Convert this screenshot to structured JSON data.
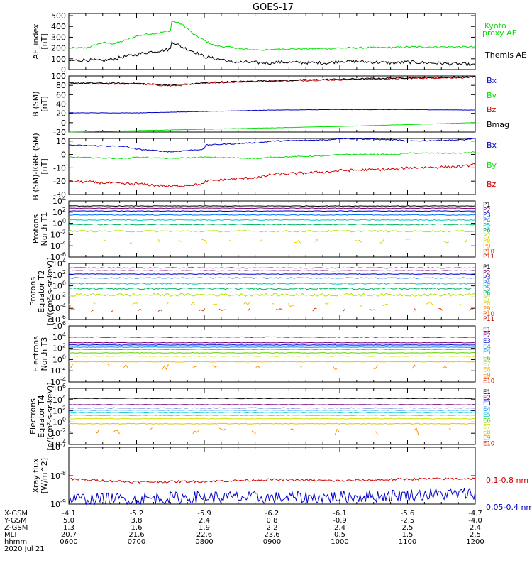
{
  "title": "GOES-17",
  "date": "2020 Jul 21",
  "colors": {
    "black": "#000000",
    "green": "#00e000",
    "blue": "#0000c8",
    "red": "#d00000",
    "P": [
      "#000000",
      "#7a007a",
      "#0000d0",
      "#0070ff",
      "#00c8c8",
      "#00b060",
      "#b8e000",
      "#e0d000",
      "#ff9000",
      "#e04000",
      "#c00000"
    ],
    "E": [
      "#000000",
      "#7a007a",
      "#0000d0",
      "#0090ff",
      "#00c8c8",
      "#60d000",
      "#d0e000",
      "#f0c000",
      "#ff9000",
      "#d02000",
      "#c00000"
    ]
  },
  "xaxis": {
    "range": [
      600,
      1200
    ],
    "tick_positions": [
      600,
      700,
      800,
      900,
      1000,
      1100,
      1200
    ],
    "rows": [
      {
        "label": "X-GSM",
        "values": [
          "-4.1",
          "-5.2",
          "-5.9",
          "-6.2",
          "-6.1",
          "-5.6",
          "-4.7"
        ]
      },
      {
        "label": "Y-GSM",
        "values": [
          "5.0",
          "3.8",
          "2.4",
          "0.8",
          "-0.9",
          "-2.5",
          "-4.0"
        ]
      },
      {
        "label": "Z-GSM",
        "values": [
          "1.3",
          "1.6",
          "1.9",
          "2.2",
          "2.4",
          "2.5",
          "2.4"
        ]
      },
      {
        "label": "MLT",
        "values": [
          "20.7",
          "21.6",
          "22.6",
          "23.6",
          "0.5",
          "1.5",
          "2.5"
        ]
      },
      {
        "label": "hhmm",
        "values": [
          "0600",
          "0700",
          "0800",
          "0900",
          "1000",
          "1100",
          "1200"
        ]
      }
    ]
  },
  "chart_data": [
    {
      "type": "line",
      "panel": "ae",
      "ylabel": [
        "AE_index",
        "[nT]"
      ],
      "ylim": [
        0,
        520
      ],
      "yticks": [
        "500",
        "400",
        "300",
        "200",
        "100",
        "0"
      ],
      "ytick_vals": [
        500,
        400,
        300,
        200,
        100,
        0
      ],
      "legend": [
        {
          "text": "Kyoto",
          "color": "#00e000"
        },
        {
          "text": "proxy AE",
          "color": "#00e000"
        },
        {
          "text": "Themis AE",
          "color": "#000000"
        }
      ],
      "series": [
        {
          "name": "Kyoto proxy AE",
          "color": "#00e000",
          "noise": 8,
          "x": [
            600,
            615,
            630,
            640,
            650,
            660,
            670,
            680,
            690,
            700,
            710,
            720,
            725,
            730,
            735,
            740,
            745,
            750,
            760,
            770,
            780,
            790,
            800,
            830,
            860,
            900,
            950,
            1000,
            1050,
            1100,
            1150,
            1200
          ],
          "y": [
            200,
            200,
            250,
            240,
            270,
            310,
            330,
            340,
            360,
            380,
            400,
            440,
            460,
            450,
            440,
            420,
            380,
            330,
            270,
            220,
            210,
            200,
            190,
            190,
            180,
            190,
            195,
            200,
            205,
            210,
            210,
            210
          ]
        },
        {
          "name": "Themis AE",
          "color": "#000000",
          "noise": 15,
          "x": [
            600,
            615,
            630,
            650,
            670,
            690,
            700,
            710,
            720,
            730,
            740,
            750,
            760,
            770,
            780,
            800,
            830,
            860,
            900,
            950,
            1000,
            1050,
            1100,
            1150,
            1200
          ],
          "y": [
            80,
            90,
            80,
            120,
            160,
            190,
            220,
            230,
            250,
            270,
            210,
            170,
            120,
            100,
            90,
            70,
            70,
            60,
            70,
            60,
            80,
            60,
            70,
            50,
            40
          ]
        }
      ]
    },
    {
      "type": "line",
      "panel": "bsm",
      "ylabel": [
        "B (SM)",
        "[nT]"
      ],
      "ylim": [
        -20,
        100
      ],
      "yticks": [
        "100",
        "80",
        "60",
        "40",
        "20",
        "0",
        "-20"
      ],
      "ytick_vals": [
        100,
        80,
        60,
        40,
        20,
        0,
        -20
      ],
      "legend": [
        {
          "text": "Bx",
          "color": "#0000c8"
        },
        {
          "text": "By",
          "color": "#00e000"
        },
        {
          "text": "Bz",
          "color": "#d00000"
        },
        {
          "text": "Bmag",
          "color": "#000000"
        }
      ],
      "series": [
        {
          "name": "Bz",
          "color": "#d00000",
          "noise": 1.5,
          "x": [
            600,
            700,
            730,
            750,
            800,
            900,
            1000,
            1100,
            1200
          ],
          "y": [
            83,
            83,
            79,
            82,
            85,
            89,
            92,
            95,
            97
          ]
        },
        {
          "name": "Bmag",
          "color": "#000000",
          "noise": 1.5,
          "x": [
            600,
            700,
            730,
            750,
            800,
            900,
            1000,
            1100,
            1200
          ],
          "y": [
            85,
            84,
            81,
            83,
            86,
            90,
            93,
            96,
            98
          ]
        },
        {
          "name": "Bx",
          "color": "#0000c8",
          "noise": 0.4,
          "x": [
            600,
            700,
            800,
            900,
            1000,
            1100,
            1200
          ],
          "y": [
            21,
            21,
            24,
            27,
            28,
            28,
            27
          ]
        },
        {
          "name": "By",
          "color": "#00e000",
          "noise": 0.3,
          "x": [
            600,
            700,
            800,
            900,
            1000,
            1100,
            1200
          ],
          "y": [
            -20,
            -17,
            -14,
            -11,
            -8,
            -4,
            0
          ]
        }
      ]
    },
    {
      "type": "line",
      "panel": "digrf",
      "ylabel": [
        "B (SM)-IGRF (SM)",
        "[nT]"
      ],
      "ylim": [
        -30,
        12
      ],
      "yticks": [
        "10",
        "0",
        "-10",
        "-20",
        "-30"
      ],
      "ytick_vals": [
        10,
        0,
        -10,
        -20,
        -30
      ],
      "legend": [
        {
          "text": "Bx",
          "color": "#0000c8"
        },
        {
          "text": "By",
          "color": "#00e000"
        },
        {
          "text": "Bz",
          "color": "#d00000"
        }
      ],
      "series": [
        {
          "name": "Bx",
          "color": "#0000c8",
          "noise": 0.4,
          "x": [
            600,
            650,
            700,
            730,
            760,
            800,
            850,
            900,
            950,
            1000,
            1050,
            1100,
            1150,
            1200
          ],
          "y": [
            7,
            6,
            4,
            2,
            4,
            7,
            9,
            10,
            11,
            12,
            11,
            10,
            11,
            12
          ]
        },
        {
          "name": "By",
          "color": "#00e000",
          "noise": 0.4,
          "x": [
            600,
            650,
            700,
            730,
            760,
            800,
            850,
            900,
            950,
            1000,
            1050,
            1100,
            1150,
            1200
          ],
          "y": [
            -2,
            -3,
            -2,
            -3,
            -2,
            -2,
            -3,
            -2,
            -1,
            0,
            0,
            1,
            1,
            2
          ]
        },
        {
          "name": "Bz",
          "color": "#d00000",
          "noise": 1.0,
          "x": [
            600,
            650,
            700,
            730,
            760,
            800,
            850,
            900,
            950,
            1000,
            1050,
            1100,
            1150,
            1200
          ],
          "y": [
            -20,
            -22,
            -22,
            -24,
            -22,
            -20,
            -17,
            -15,
            -13,
            -12,
            -11,
            -10,
            -9,
            -7
          ]
        }
      ]
    },
    {
      "type": "line",
      "panel": "pn",
      "log": true,
      "ylabel": [
        "Protons",
        "North T1"
      ],
      "ylim": [
        -6,
        4
      ],
      "yticks": [
        "10^4",
        "10^2",
        "10^0",
        "10^-2",
        "10^-4",
        "10^-6"
      ],
      "ytick_vals": [
        4,
        2,
        0,
        -2,
        -4,
        -6
      ],
      "legend_labels": [
        "P1",
        "P2",
        "P3",
        "P4",
        "P5",
        "P6",
        "P7",
        "P8",
        "P9",
        "P10",
        "P11"
      ],
      "levels": [
        3.1,
        2.7,
        2.2,
        1.5,
        0.6,
        -0.2,
        -1.4,
        -3.2,
        null,
        null,
        null
      ],
      "noise": [
        0.05,
        0.05,
        0.05,
        0.06,
        0.08,
        0.1,
        0.15,
        0.4,
        0,
        0,
        0
      ],
      "sparse": [
        false,
        false,
        false,
        false,
        false,
        false,
        false,
        true,
        false,
        false,
        false
      ]
    },
    {
      "type": "line",
      "panel": "pe",
      "log": true,
      "ylabel": [
        "Protons",
        "Equator T2",
        "[p/(cm²-s-sr-keV)]"
      ],
      "ylim": [
        -6,
        4
      ],
      "yticks": [
        "10^4",
        "10^2",
        "10^0",
        "10^-2",
        "10^-4",
        "10^-6"
      ],
      "ytick_vals": [
        4,
        2,
        0,
        -2,
        -4,
        -6
      ],
      "legend_labels": [
        "P1",
        "P2",
        "P3",
        "P4",
        "P5",
        "P6",
        "P7",
        "P8",
        "P9",
        "P10",
        "P11"
      ],
      "levels": [
        3.2,
        2.7,
        2.1,
        1.4,
        0.4,
        -0.5,
        -1.6,
        -3.3,
        null,
        -4.3,
        null
      ],
      "noise": [
        0.05,
        0.05,
        0.05,
        0.08,
        0.1,
        0.15,
        0.25,
        0.4,
        0,
        0.3,
        0
      ],
      "sparse": [
        false,
        false,
        false,
        false,
        false,
        false,
        false,
        true,
        false,
        true,
        false
      ]
    },
    {
      "type": "line",
      "panel": "en",
      "log": true,
      "ylabel": [
        "Electrons",
        "North T3"
      ],
      "ylim": [
        -4,
        6
      ],
      "yticks": [
        "10^6",
        "10^4",
        "10^2",
        "10^0",
        "10^-2",
        "10^-4"
      ],
      "ytick_vals": [
        6,
        4,
        2,
        0,
        -2,
        -4
      ],
      "legend_labels": [
        "E1",
        "E2",
        "E3",
        "E4",
        "E5",
        "E6",
        "E7",
        "E8",
        "E9",
        "E10"
      ],
      "levels": [
        4.0,
        3.0,
        2.6,
        2.2,
        1.8,
        1.2,
        0.6,
        -0.4,
        -1.3,
        null
      ],
      "noise": [
        0.05,
        0.04,
        0.04,
        0.04,
        0.05,
        0.05,
        0.06,
        0.06,
        0.6,
        0
      ],
      "sparse": [
        false,
        false,
        false,
        false,
        false,
        false,
        false,
        false,
        true,
        false
      ]
    },
    {
      "type": "line",
      "panel": "ee",
      "log": true,
      "ylabel": [
        "Electrons",
        "Equator T4",
        "[e/(cm²-s-sr-keV)]"
      ],
      "ylim": [
        -4,
        6
      ],
      "yticks": [
        "10^6",
        "10^4",
        "10^2",
        "10^0",
        "10^-2",
        "10^-4"
      ],
      "ytick_vals": [
        6,
        4,
        2,
        0,
        -2,
        -4
      ],
      "legend_labels": [
        "E1",
        "E2",
        "E3",
        "E4",
        "E5",
        "E6",
        "E7",
        "E8",
        "E9",
        "E10"
      ],
      "levels": [
        4.2,
        3.1,
        2.5,
        2.1,
        1.7,
        1.2,
        0.6,
        -0.3,
        -1.6,
        null
      ],
      "noise": [
        0.05,
        0.04,
        0.04,
        0.04,
        0.05,
        0.05,
        0.06,
        0.06,
        0.7,
        0
      ],
      "sparse": [
        false,
        false,
        false,
        false,
        false,
        false,
        false,
        false,
        true,
        false
      ]
    },
    {
      "type": "line",
      "panel": "xray",
      "log": true,
      "ylabel": [
        "Xray flux",
        "[W/m^2]"
      ],
      "ylim": [
        -9,
        -7
      ],
      "yticks": [
        "10^-7",
        "10^-8",
        "10^-9"
      ],
      "ytick_vals": [
        -7,
        -8,
        -9
      ],
      "legend": [
        {
          "text": "0.1-0.8 nm",
          "color": "#d00000"
        },
        {
          "text": "0.05-0.4 nm",
          "color": "#0000c8"
        }
      ],
      "series": [
        {
          "name": "0.1-0.8 nm",
          "color": "#d00000",
          "noise": 0.04,
          "x": [
            600,
            700,
            800,
            900,
            1000,
            1100,
            1200
          ],
          "y": [
            -8.12,
            -8.22,
            -8.2,
            -8.14,
            -8.18,
            -8.12,
            -8.1
          ]
        },
        {
          "name": "0.05-0.4 nm",
          "color": "#0000c8",
          "noise": 0.22,
          "x": [
            600,
            700,
            800,
            900,
            1000,
            1100,
            1200
          ],
          "y": [
            -8.82,
            -8.82,
            -8.75,
            -8.78,
            -8.75,
            -8.68,
            -8.62
          ]
        }
      ]
    }
  ]
}
